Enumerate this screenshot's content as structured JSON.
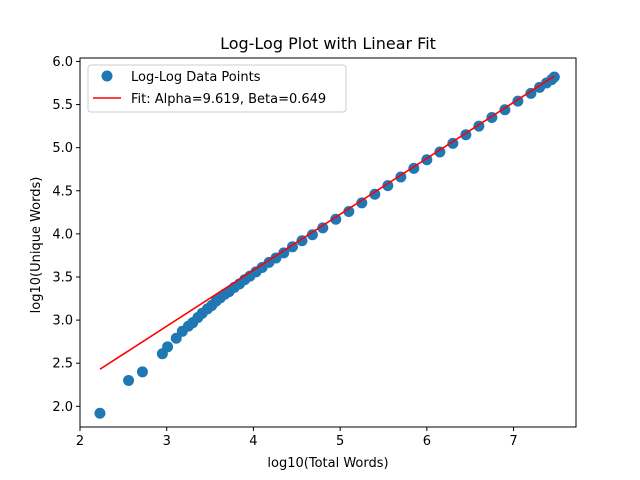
{
  "chart_data": {
    "type": "scatter",
    "title": "Log-Log Plot with Linear Fit",
    "xlabel": "log10(Total Words)",
    "ylabel": "log10(Unique Words)",
    "xlim": [
      2.0,
      7.72
    ],
    "ylim": [
      1.76,
      6.04
    ],
    "xticks": [
      2,
      3,
      4,
      5,
      6,
      7
    ],
    "yticks": [
      2.0,
      2.5,
      3.0,
      3.5,
      4.0,
      4.5,
      5.0,
      5.5,
      6.0
    ],
    "xtick_labels": [
      "2",
      "3",
      "4",
      "5",
      "6",
      "7"
    ],
    "ytick_labels": [
      "2.0",
      "2.5",
      "3.0",
      "3.5",
      "4.0",
      "4.5",
      "5.0",
      "5.5",
      "6.0"
    ],
    "grid": false,
    "legend_position": "upper-left",
    "series": [
      {
        "name": "Log-Log Data Points",
        "kind": "scatter",
        "color": "#1f77b4",
        "x": [
          2.23,
          2.56,
          2.72,
          2.95,
          3.01,
          3.11,
          3.18,
          3.25,
          3.3,
          3.36,
          3.41,
          3.47,
          3.52,
          3.57,
          3.62,
          3.67,
          3.72,
          3.78,
          3.84,
          3.9,
          3.96,
          4.03,
          4.1,
          4.18,
          4.26,
          4.35,
          4.45,
          4.56,
          4.68,
          4.8,
          4.95,
          5.1,
          5.25,
          5.4,
          5.55,
          5.7,
          5.85,
          6.0,
          6.15,
          6.3,
          6.45,
          6.6,
          6.75,
          6.9,
          7.05,
          7.2,
          7.3,
          7.38,
          7.44,
          7.47
        ],
        "y": [
          1.92,
          2.3,
          2.4,
          2.61,
          2.69,
          2.79,
          2.87,
          2.93,
          2.97,
          3.03,
          3.08,
          3.13,
          3.17,
          3.22,
          3.26,
          3.3,
          3.33,
          3.38,
          3.42,
          3.47,
          3.51,
          3.56,
          3.61,
          3.67,
          3.72,
          3.78,
          3.85,
          3.92,
          3.99,
          4.07,
          4.17,
          4.26,
          4.36,
          4.46,
          4.56,
          4.66,
          4.76,
          4.86,
          4.95,
          5.05,
          5.15,
          5.25,
          5.35,
          5.44,
          5.54,
          5.63,
          5.7,
          5.75,
          5.79,
          5.82
        ]
      },
      {
        "name": "Fit: Alpha=9.619, Beta=0.649",
        "kind": "line",
        "color": "#ff0000",
        "x": [
          2.23,
          7.47
        ],
        "y": [
          2.43,
          5.83
        ]
      }
    ]
  }
}
